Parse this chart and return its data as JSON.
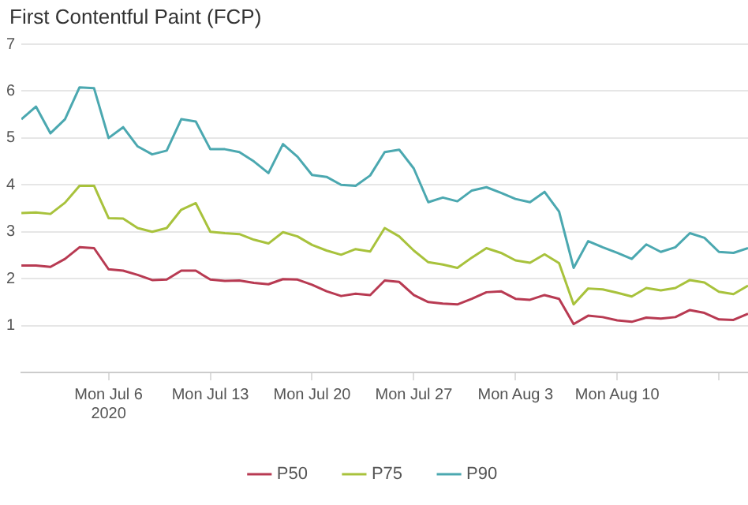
{
  "chart_data": {
    "type": "line",
    "title": "First Contentful Paint (FCP)",
    "x": [
      "2020-06-30",
      "2020-07-01",
      "2020-07-02",
      "2020-07-03",
      "2020-07-04",
      "2020-07-05",
      "2020-07-06",
      "2020-07-07",
      "2020-07-08",
      "2020-07-09",
      "2020-07-10",
      "2020-07-11",
      "2020-07-12",
      "2020-07-13",
      "2020-07-14",
      "2020-07-15",
      "2020-07-16",
      "2020-07-17",
      "2020-07-18",
      "2020-07-19",
      "2020-07-20",
      "2020-07-21",
      "2020-07-22",
      "2020-07-23",
      "2020-07-24",
      "2020-07-25",
      "2020-07-26",
      "2020-07-27",
      "2020-07-28",
      "2020-07-29",
      "2020-07-30",
      "2020-07-31",
      "2020-08-01",
      "2020-08-02",
      "2020-08-03",
      "2020-08-04",
      "2020-08-05",
      "2020-08-06",
      "2020-08-07",
      "2020-08-08",
      "2020-08-09",
      "2020-08-10",
      "2020-08-11",
      "2020-08-12",
      "2020-08-13",
      "2020-08-14",
      "2020-08-15",
      "2020-08-16",
      "2020-08-17",
      "2020-08-18",
      "2020-08-19"
    ],
    "series": [
      {
        "name": "P50",
        "color": "#b83a52",
        "values": [
          2.28,
          2.28,
          2.25,
          2.42,
          2.67,
          2.65,
          2.2,
          2.17,
          2.08,
          1.97,
          1.98,
          2.17,
          2.17,
          1.98,
          1.95,
          1.96,
          1.91,
          1.88,
          1.99,
          1.98,
          1.87,
          1.73,
          1.63,
          1.68,
          1.65,
          1.96,
          1.93,
          1.65,
          1.5,
          1.47,
          1.45,
          1.57,
          1.71,
          1.73,
          1.57,
          1.55,
          1.65,
          1.57,
          1.03,
          1.21,
          1.18,
          1.11,
          1.08,
          1.17,
          1.15,
          1.18,
          1.33,
          1.27,
          1.13,
          1.12,
          1.25
        ]
      },
      {
        "name": "P75",
        "color": "#a8c23c",
        "values": [
          3.4,
          3.41,
          3.38,
          3.62,
          3.98,
          3.98,
          3.29,
          3.28,
          3.08,
          3.0,
          3.08,
          3.47,
          3.61,
          3.0,
          2.97,
          2.95,
          2.83,
          2.75,
          2.99,
          2.9,
          2.72,
          2.6,
          2.51,
          2.63,
          2.58,
          3.08,
          2.9,
          2.6,
          2.35,
          2.3,
          2.23,
          2.45,
          2.65,
          2.55,
          2.39,
          2.34,
          2.52,
          2.33,
          1.45,
          1.79,
          1.77,
          1.7,
          1.62,
          1.8,
          1.75,
          1.8,
          1.97,
          1.92,
          1.72,
          1.67,
          1.85
        ]
      },
      {
        "name": "P90",
        "color": "#4ba8b0",
        "values": [
          5.4,
          5.67,
          5.1,
          5.4,
          6.08,
          6.06,
          5.0,
          5.23,
          4.82,
          4.65,
          4.73,
          5.4,
          5.35,
          4.76,
          4.76,
          4.7,
          4.5,
          4.25,
          4.87,
          4.6,
          4.21,
          4.17,
          4.0,
          3.98,
          4.2,
          4.7,
          4.75,
          4.35,
          3.63,
          3.73,
          3.65,
          3.88,
          3.95,
          3.83,
          3.7,
          3.63,
          3.85,
          3.43,
          2.23,
          2.8,
          2.67,
          2.55,
          2.42,
          2.73,
          2.57,
          2.67,
          2.97,
          2.87,
          2.57,
          2.55,
          2.65
        ]
      }
    ],
    "xlim": [
      "2020-06-30",
      "2020-08-19"
    ],
    "xticks": [
      {
        "value": "2020-07-06",
        "label": "Mon Jul 6\n2020"
      },
      {
        "value": "2020-07-13",
        "label": "Mon Jul 13"
      },
      {
        "value": "2020-07-20",
        "label": "Mon Jul 20"
      },
      {
        "value": "2020-07-27",
        "label": "Mon Jul 27"
      },
      {
        "value": "2020-08-03",
        "label": "Mon Aug 3"
      },
      {
        "value": "2020-08-10",
        "label": "Mon Aug 10"
      },
      {
        "value": "2020-08-17",
        "label": null
      }
    ],
    "ylim": [
      0,
      7
    ],
    "yticks": [
      {
        "value": 0,
        "label": null
      },
      1,
      2,
      3,
      4,
      5,
      6,
      7
    ],
    "grid": "y",
    "legend": "bottom",
    "marker": "none"
  }
}
